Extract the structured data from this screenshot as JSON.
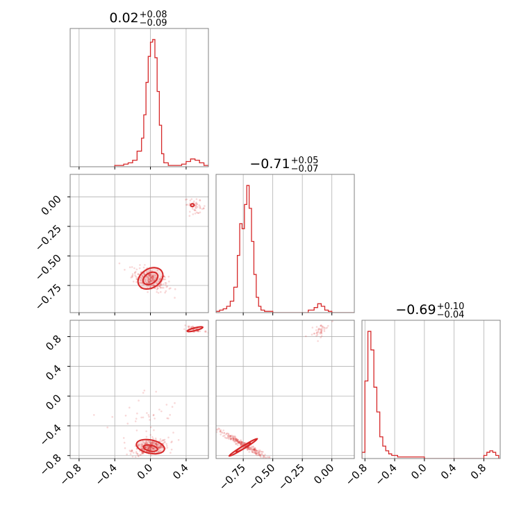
{
  "figure": {
    "type": "corner plot",
    "accent_color": "#d62728"
  },
  "chart_data": {
    "type": "corner",
    "parameters": [
      {
        "index": 0,
        "title_value": "0.02",
        "title_plus": "+0.08",
        "title_minus": "−0.09",
        "range": [
          -0.9,
          0.65
        ],
        "ticks": [
          -0.8,
          -0.4,
          0.0,
          0.4
        ],
        "tick_labels": [
          "−0.8",
          "−0.4",
          "0.0",
          "0.4"
        ],
        "histogram": {
          "bin_edges": [
            -0.4,
            -0.35,
            -0.3,
            -0.25,
            -0.2,
            -0.15,
            -0.1,
            -0.075,
            -0.05,
            -0.025,
            0.0,
            0.025,
            0.05,
            0.075,
            0.1,
            0.125,
            0.15,
            0.2,
            0.25,
            0.3,
            0.35,
            0.4,
            0.45,
            0.5,
            0.55,
            0.6,
            0.65
          ],
          "counts": [
            0.01,
            0.01,
            0.02,
            0.03,
            0.05,
            0.12,
            0.22,
            0.4,
            0.65,
            0.85,
            0.96,
            0.98,
            0.84,
            0.58,
            0.32,
            0.1,
            0.03,
            0.01,
            0.01,
            0.01,
            0.02,
            0.04,
            0.06,
            0.05,
            0.03,
            0.01
          ]
        }
      },
      {
        "index": 1,
        "title_value": "−0.71",
        "title_plus": "+0.05",
        "title_minus": "−0.07",
        "range": [
          -0.98,
          0.19
        ],
        "ticks": [
          0.0,
          -0.25,
          -0.5,
          -0.75
        ],
        "tick_labels": [
          "0.00",
          "−0.25",
          "−0.50",
          "−0.75"
        ],
        "histogram": {
          "bin_edges": [
            -0.98,
            -0.95,
            -0.92,
            -0.89,
            -0.86,
            -0.83,
            -0.8,
            -0.78,
            -0.76,
            -0.74,
            -0.72,
            -0.7,
            -0.68,
            -0.66,
            -0.64,
            -0.62,
            -0.6,
            -0.57,
            -0.54,
            -0.5,
            -0.2,
            -0.15,
            -0.12,
            -0.09,
            -0.06,
            -0.03,
            0.0,
            0.19
          ],
          "counts": [
            0.01,
            0.02,
            0.03,
            0.05,
            0.09,
            0.2,
            0.45,
            0.7,
            0.66,
            0.85,
            1.0,
            0.82,
            0.56,
            0.3,
            0.12,
            0.05,
            0.02,
            0.01,
            0.01,
            0.0,
            0.02,
            0.04,
            0.07,
            0.05,
            0.02,
            0.01,
            0.0
          ]
        }
      },
      {
        "index": 2,
        "title_value": "−0.69",
        "title_plus": "+0.10",
        "title_minus": "−0.04",
        "range": [
          -0.84,
          1.02
        ],
        "ticks": [
          -0.8,
          -0.4,
          0.0,
          0.4,
          0.8
        ],
        "tick_labels": [
          "−0.8",
          "−0.4",
          "0.0",
          "0.4",
          "0.8"
        ],
        "histogram": {
          "bin_edges": [
            -0.84,
            -0.8,
            -0.76,
            -0.72,
            -0.68,
            -0.64,
            -0.6,
            -0.56,
            -0.52,
            -0.48,
            -0.44,
            -0.4,
            -0.36,
            -0.32,
            -0.28,
            -0.24,
            -0.2,
            0.0,
            0.4,
            0.8,
            0.84,
            0.88,
            0.92,
            0.96,
            1.0
          ],
          "counts": [
            0.04,
            0.5,
            0.82,
            0.7,
            0.46,
            0.3,
            0.14,
            0.08,
            0.05,
            0.03,
            0.02,
            0.02,
            0.01,
            0.01,
            0.01,
            0.01,
            0.01,
            0.0,
            0.0,
            0.02,
            0.04,
            0.05,
            0.04,
            0.02
          ]
        }
      }
    ],
    "pairs": [
      {
        "x_param": 0,
        "y_param": 1,
        "clusters": [
          {
            "center": [
              0.0,
              -0.7
            ],
            "spread": [
              0.1,
              0.05
            ],
            "corr": -0.5,
            "n": 260
          },
          {
            "center": [
              0.5,
              -0.08
            ],
            "spread": [
              0.06,
              0.03
            ],
            "corr": -0.4,
            "n": 50
          }
        ],
        "contours": [
          {
            "center": [
              0.0,
              -0.69
            ],
            "rx": 0.15,
            "ry": 0.08,
            "angle": -0.55
          },
          {
            "center": [
              0.0,
              -0.69
            ],
            "rx": 0.09,
            "ry": 0.045,
            "angle": -0.55
          },
          {
            "center": [
              0.47,
              -0.07
            ],
            "rx": 0.02,
            "ry": 0.01,
            "angle": 0.0
          }
        ]
      },
      {
        "x_param": 0,
        "y_param": 2,
        "clusters": [
          {
            "center": [
              0.0,
              -0.69
            ],
            "spread": [
              0.1,
              0.05
            ],
            "corr": 0.4,
            "n": 300
          },
          {
            "center": [
              0.5,
              0.9
            ],
            "spread": [
              0.07,
              0.03
            ],
            "corr": -0.5,
            "n": 45
          },
          {
            "center": [
              -0.05,
              -0.3
            ],
            "spread": [
              0.2,
              0.2
            ],
            "corr": 0.0,
            "n": 40
          }
        ],
        "contours": [
          {
            "center": [
              0.0,
              -0.68
            ],
            "rx": 0.16,
            "ry": 0.09,
            "angle": 0.2
          },
          {
            "center": [
              0.0,
              -0.7
            ],
            "rx": 0.08,
            "ry": 0.04,
            "angle": 0.2
          },
          {
            "center": [
              0.5,
              0.9
            ],
            "rx": 0.09,
            "ry": 0.012,
            "angle": -0.25
          }
        ]
      },
      {
        "x_param": 1,
        "y_param": 2,
        "clusters": [
          {
            "center": [
              -0.75,
              -0.65
            ],
            "spread": [
              0.1,
              0.09
            ],
            "corr": -0.97,
            "n": 280
          },
          {
            "center": [
              -0.1,
              0.88
            ],
            "spread": [
              0.04,
              0.05
            ],
            "corr": 0.6,
            "n": 45
          }
        ],
        "contours": [
          {
            "center": [
              -0.75,
              -0.69
            ],
            "rx": 0.14,
            "ry": 0.016,
            "angle": -0.55
          },
          {
            "center": [
              -0.75,
              -0.69
            ],
            "rx": 0.07,
            "ry": 0.008,
            "angle": -0.55
          }
        ]
      }
    ]
  }
}
